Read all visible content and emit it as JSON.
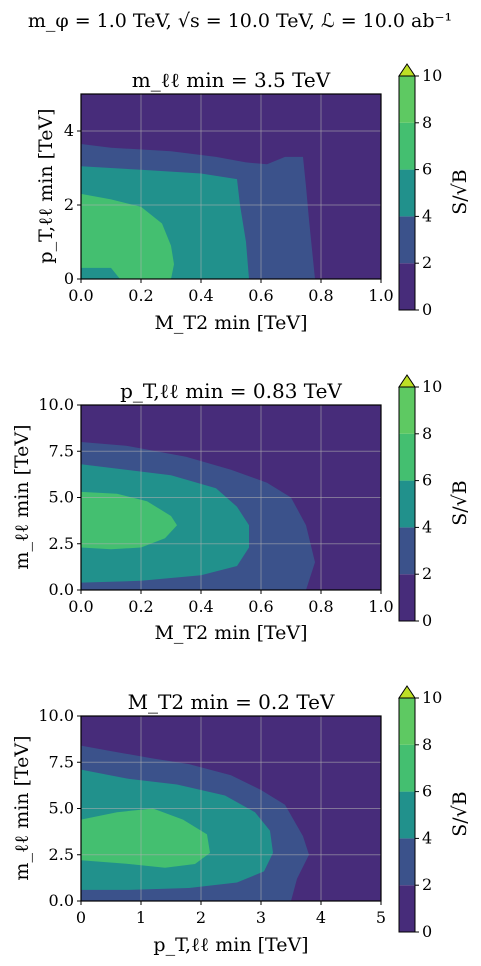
{
  "figure": {
    "suptitle": "m_φ = 1.0 TeV, √s = 10.0 TeV, ℒ = 10.0 ab⁻¹"
  },
  "colors": {
    "levels": [
      "#440154",
      "#3b528b",
      "#21918c",
      "#5ec962",
      "#fde725"
    ],
    "band_0_2": "#472c7a",
    "band_2_4": "#3b528b",
    "band_4_6": "#21918c",
    "band_6_8": "#44bf70",
    "band_8_10": "#5ec962",
    "extend": "#bddf26",
    "grid": "#b0b0b0"
  },
  "chart_data": [
    {
      "type": "heatmap",
      "style": "filled-contour",
      "title": "m_ℓℓ min = 3.5 TeV",
      "xlabel": "M_T2 min [TeV]",
      "ylabel": "p_T,ℓℓ min [TeV]",
      "xlim": [
        0.0,
        1.0
      ],
      "ylim": [
        0,
        5
      ],
      "xticks": [
        "0.0",
        "0.2",
        "0.4",
        "0.6",
        "0.8",
        "1.0"
      ],
      "yticks": [
        "0",
        "2",
        "4"
      ],
      "grid": true,
      "colorbar": {
        "label": "S/√B",
        "ticks": [
          "0",
          "2",
          "4",
          "6",
          "8",
          "10"
        ],
        "levels": [
          0,
          2,
          4,
          6,
          8,
          10
        ],
        "extend": "max"
      },
      "regions": [
        {
          "level": "2-4",
          "boundary": [
            [
              0.0,
              3.65
            ],
            [
              0.1,
              3.55
            ],
            [
              0.3,
              3.45
            ],
            [
              0.45,
              3.3
            ],
            [
              0.55,
              3.15
            ],
            [
              0.62,
              3.1
            ],
            [
              0.68,
              3.3
            ],
            [
              0.74,
              3.3
            ],
            [
              0.75,
              2.5
            ],
            [
              0.76,
              1.6
            ],
            [
              0.78,
              0.0
            ],
            [
              0.0,
              0.0
            ]
          ]
        },
        {
          "level": "4-6",
          "boundary": [
            [
              0.0,
              3.05
            ],
            [
              0.2,
              2.95
            ],
            [
              0.4,
              2.85
            ],
            [
              0.52,
              2.7
            ],
            [
              0.53,
              2.0
            ],
            [
              0.55,
              1.0
            ],
            [
              0.56,
              0.0
            ],
            [
              0.0,
              0.0
            ]
          ]
        },
        {
          "level": "6-8",
          "boundary": [
            [
              0.0,
              2.3
            ],
            [
              0.1,
              2.15
            ],
            [
              0.2,
              1.95
            ],
            [
              0.27,
              1.5
            ],
            [
              0.3,
              0.9
            ],
            [
              0.31,
              0.4
            ],
            [
              0.3,
              0.0
            ],
            [
              0.13,
              0.0
            ],
            [
              0.1,
              0.3
            ],
            [
              0.0,
              0.3
            ]
          ]
        }
      ]
    },
    {
      "type": "heatmap",
      "style": "filled-contour",
      "title": "p_T,ℓℓ min = 0.83 TeV",
      "xlabel": "M_T2 min [TeV]",
      "ylabel": "m_ℓℓ min [TeV]",
      "xlim": [
        0.0,
        1.0
      ],
      "ylim": [
        0.0,
        10.0
      ],
      "xticks": [
        "0.0",
        "0.2",
        "0.4",
        "0.6",
        "0.8",
        "1.0"
      ],
      "yticks": [
        "0.0",
        "2.5",
        "5.0",
        "7.5",
        "10.0"
      ],
      "grid": true,
      "colorbar": {
        "label": "S/√B",
        "ticks": [
          "0",
          "2",
          "4",
          "6",
          "8",
          "10"
        ],
        "levels": [
          0,
          2,
          4,
          6,
          8,
          10
        ],
        "extend": "max"
      },
      "regions": [
        {
          "level": "2-4",
          "boundary": [
            [
              0.0,
              8.0
            ],
            [
              0.15,
              7.8
            ],
            [
              0.35,
              7.2
            ],
            [
              0.5,
              6.5
            ],
            [
              0.62,
              5.8
            ],
            [
              0.7,
              5.0
            ],
            [
              0.75,
              3.5
            ],
            [
              0.78,
              1.5
            ],
            [
              0.75,
              0.0
            ],
            [
              0.0,
              0.0
            ]
          ]
        },
        {
          "level": "4-6",
          "boundary": [
            [
              0.0,
              6.8
            ],
            [
              0.15,
              6.5
            ],
            [
              0.3,
              6.2
            ],
            [
              0.45,
              5.5
            ],
            [
              0.52,
              4.5
            ],
            [
              0.56,
              3.5
            ],
            [
              0.56,
              2.3
            ],
            [
              0.52,
              1.3
            ],
            [
              0.4,
              0.8
            ],
            [
              0.2,
              0.5
            ],
            [
              0.0,
              0.4
            ]
          ]
        },
        {
          "level": "6-8",
          "boundary": [
            [
              0.0,
              5.3
            ],
            [
              0.12,
              5.2
            ],
            [
              0.22,
              4.8
            ],
            [
              0.3,
              4.0
            ],
            [
              0.32,
              3.5
            ],
            [
              0.28,
              2.8
            ],
            [
              0.2,
              2.3
            ],
            [
              0.1,
              2.2
            ],
            [
              0.0,
              2.3
            ]
          ]
        }
      ]
    },
    {
      "type": "heatmap",
      "style": "filled-contour",
      "title": "M_T2 min = 0.2 TeV",
      "xlabel": "p_T,ℓℓ min [TeV]",
      "ylabel": "m_ℓℓ min [TeV]",
      "xlim": [
        0,
        5
      ],
      "ylim": [
        0.0,
        10.0
      ],
      "xticks": [
        "0",
        "1",
        "2",
        "3",
        "4",
        "5"
      ],
      "yticks": [
        "0.0",
        "2.5",
        "5.0",
        "7.5",
        "10.0"
      ],
      "grid": true,
      "colorbar": {
        "label": "S/√B",
        "ticks": [
          "0",
          "2",
          "4",
          "6",
          "8",
          "10"
        ],
        "levels": [
          0,
          2,
          4,
          6,
          8,
          10
        ],
        "extend": "max"
      },
      "regions": [
        {
          "level": "2-4",
          "boundary": [
            [
              0.0,
              8.4
            ],
            [
              0.5,
              8.1
            ],
            [
              1.2,
              7.7
            ],
            [
              1.8,
              7.4
            ],
            [
              2.5,
              6.8
            ],
            [
              3.0,
              6.0
            ],
            [
              3.4,
              5.2
            ],
            [
              3.7,
              3.5
            ],
            [
              3.8,
              2.5
            ],
            [
              3.6,
              1.2
            ],
            [
              3.5,
              0.0
            ],
            [
              0.0,
              0.0
            ]
          ]
        },
        {
          "level": "4-6",
          "boundary": [
            [
              0.0,
              7.1
            ],
            [
              0.8,
              6.6
            ],
            [
              1.6,
              6.3
            ],
            [
              2.4,
              5.7
            ],
            [
              2.9,
              4.8
            ],
            [
              3.15,
              3.8
            ],
            [
              3.2,
              2.6
            ],
            [
              3.05,
              1.6
            ],
            [
              2.6,
              1.0
            ],
            [
              1.8,
              0.7
            ],
            [
              0.8,
              0.6
            ],
            [
              0.0,
              0.6
            ]
          ]
        },
        {
          "level": "6-8",
          "boundary": [
            [
              0.0,
              4.4
            ],
            [
              0.6,
              4.8
            ],
            [
              1.2,
              5.0
            ],
            [
              1.7,
              4.4
            ],
            [
              2.1,
              3.6
            ],
            [
              2.15,
              2.6
            ],
            [
              1.9,
              2.0
            ],
            [
              1.4,
              1.8
            ],
            [
              0.8,
              2.0
            ],
            [
              0.0,
              2.2
            ]
          ]
        }
      ]
    }
  ]
}
